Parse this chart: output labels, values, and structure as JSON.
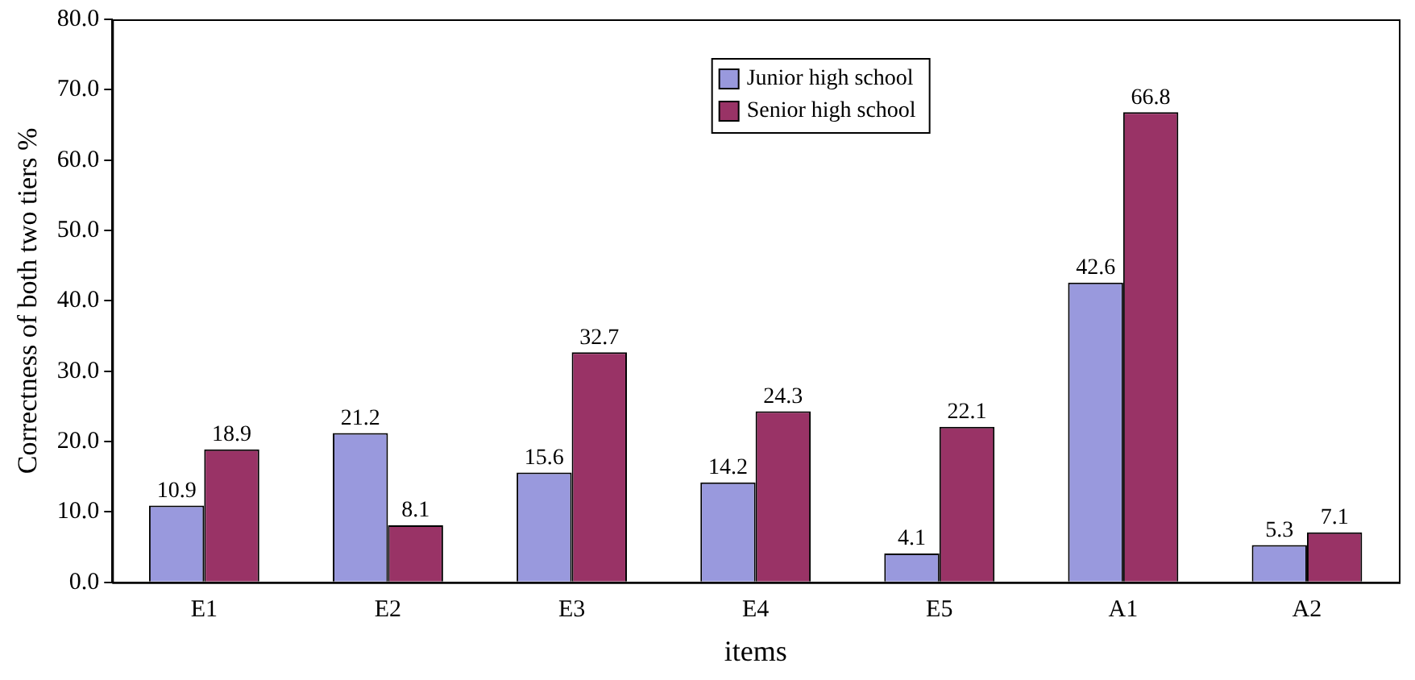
{
  "chart_data": {
    "type": "bar",
    "xlabel": "items",
    "ylabel": "Correctness of both two tiers %",
    "categories": [
      "E1",
      "E2",
      "E3",
      "E4",
      "E5",
      "A1",
      "A2"
    ],
    "series": [
      {
        "name": "Junior high school",
        "color": "#9999dd",
        "values": [
          10.9,
          21.2,
          15.6,
          14.2,
          4.1,
          42.6,
          5.3
        ]
      },
      {
        "name": "Senior high school",
        "color": "#993366",
        "values": [
          18.9,
          8.1,
          32.7,
          24.3,
          22.1,
          66.8,
          7.1
        ]
      }
    ],
    "ylim": [
      0,
      80
    ],
    "yticks": [
      {
        "value": 0,
        "label": "0.0"
      },
      {
        "value": 10,
        "label": "10.0"
      },
      {
        "value": 20,
        "label": "20.0"
      },
      {
        "value": 30,
        "label": "30.0"
      },
      {
        "value": 40,
        "label": "40.0"
      },
      {
        "value": 50,
        "label": "50.0"
      },
      {
        "value": 60,
        "label": "60.0"
      },
      {
        "value": 70,
        "label": "70.0"
      },
      {
        "value": 80,
        "label": "80.0"
      }
    ],
    "grid": false,
    "legend": "top",
    "data_labels": true
  }
}
